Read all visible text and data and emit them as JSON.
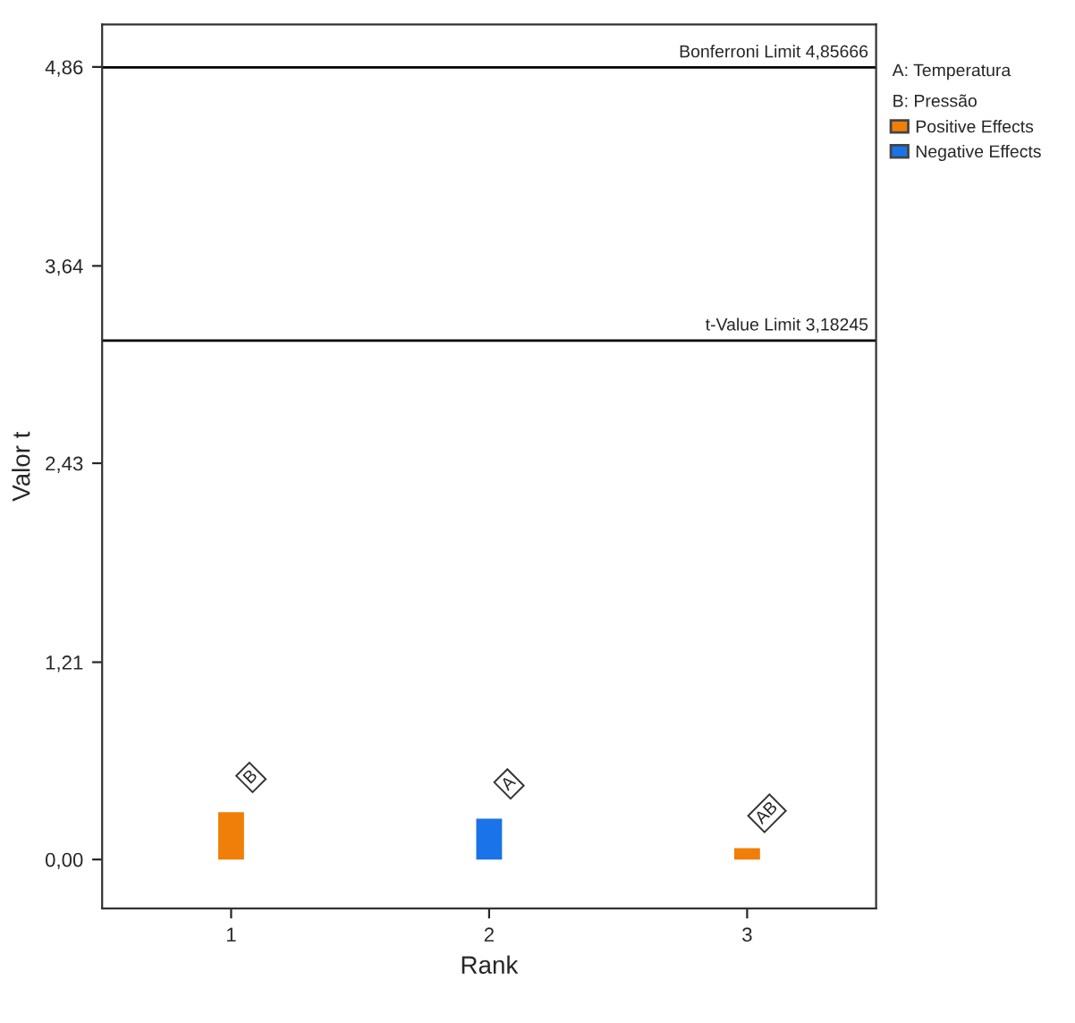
{
  "chart_data": {
    "type": "bar",
    "xlabel": "Rank",
    "ylabel": "Valor t",
    "categories": [
      "1",
      "2",
      "3"
    ],
    "series": [
      {
        "name": "Positive Effects",
        "color": "#f07f09",
        "values": [
          0.29,
          null,
          0.07
        ]
      },
      {
        "name": "Negative Effects",
        "color": "#1a73e8",
        "values": [
          null,
          0.25,
          null
        ]
      }
    ],
    "ylim": [
      -0.3,
      5.12
    ],
    "yticks": [
      {
        "value": 0,
        "label": "0,00"
      },
      {
        "value": 1.21,
        "label": "1,21"
      },
      {
        "value": 2.43,
        "label": "2,43"
      },
      {
        "value": 3.64,
        "label": "3,64"
      },
      {
        "value": 4.86,
        "label": "4,86"
      }
    ],
    "ref_lines": [
      {
        "axis": "y",
        "value": 4.85666,
        "label": "Bonferroni Limit 4,85666",
        "color": "#000000"
      },
      {
        "axis": "y",
        "value": 3.18245,
        "label": "t-Value Limit 3,18245",
        "color": "#000000"
      }
    ],
    "annotations": [
      {
        "text": "B",
        "x": "1",
        "y": 0.29
      },
      {
        "text": "A",
        "x": "2",
        "y": 0.25
      },
      {
        "text": "AB",
        "x": "3",
        "y": 0.07
      },
      "A: Temperatura",
      "B: Pressão"
    ],
    "legend": "right",
    "grid": false
  }
}
